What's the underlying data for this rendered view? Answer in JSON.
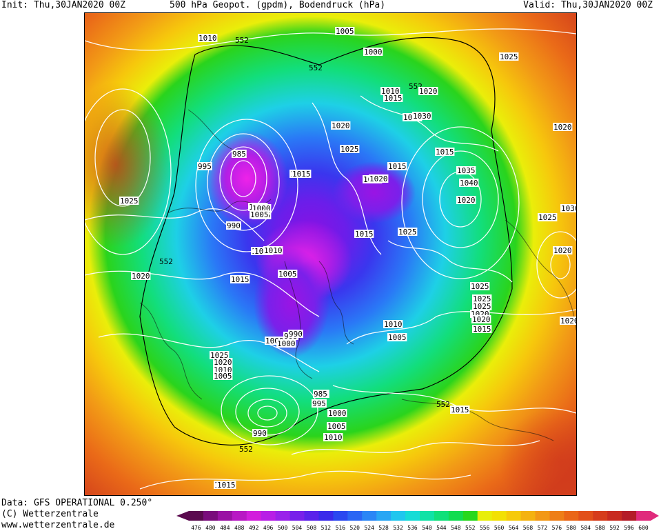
{
  "header": {
    "init": "Init: Thu,30JAN2020 00Z",
    "title": "500 hPa Geopot. (gpdm), Bodendruck (hPa)",
    "valid": "Valid: Thu,30JAN2020 00Z"
  },
  "footer": {
    "data_source": "Data: GFS OPERATIONAL 0.250°",
    "copyright": "(C) Wetterzentrale",
    "url": "www.wetterzentrale.de"
  },
  "legend": {
    "unit": "gpdm",
    "ticks": [
      "476",
      "480",
      "484",
      "488",
      "492",
      "496",
      "500",
      "504",
      "508",
      "512",
      "516",
      "520",
      "524",
      "528",
      "532",
      "536",
      "540",
      "544",
      "548",
      "552",
      "556",
      "560",
      "564",
      "568",
      "572",
      "576",
      "580",
      "584",
      "588",
      "592",
      "596",
      "600"
    ],
    "colors": [
      "#5a0a4e",
      "#7a0c7c",
      "#9a12a4",
      "#b818c4",
      "#d21edc",
      "#b81fe6",
      "#9a22ea",
      "#7820ea",
      "#5a22ea",
      "#3a2aea",
      "#2a48f0",
      "#2a66f4",
      "#2a86f6",
      "#28a6f4",
      "#20c6ee",
      "#16dcd6",
      "#10e2a6",
      "#10e07a",
      "#12dc50",
      "#28d81c",
      "#e8ee0a",
      "#f2e004",
      "#f6ca0a",
      "#f4b210",
      "#f29816",
      "#ee7e18",
      "#ea6618",
      "#e2501a",
      "#d63c1c",
      "#c82a20",
      "#b41c28",
      "#e02a7c"
    ]
  },
  "map": {
    "contour_labels_gpdm": [
      "552",
      "552",
      "552",
      "552",
      "552",
      "552"
    ],
    "pressure_labels_hpa": [
      "1010",
      "1005",
      "1000",
      "1010",
      "1015",
      "1020",
      "1025",
      "1030",
      "1020",
      "1025",
      "1015",
      "1020",
      "1030",
      "1035",
      "1040",
      "1020",
      "1015",
      "1025",
      "1020",
      "1015",
      "1025",
      "1015",
      "1020",
      "1030",
      "1025",
      "1020",
      "1020",
      "1025",
      "1020",
      "1015",
      "1015",
      "1010",
      "1005",
      "1000",
      "990",
      "985",
      "995",
      "1000",
      "1005",
      "1010",
      "1025",
      "1020",
      "1010",
      "1005",
      "1000",
      "995",
      "990",
      "985",
      "995",
      "990",
      "1000",
      "1005",
      "1010",
      "1015",
      "1005",
      "1010",
      "1015",
      "1015",
      "985",
      "995",
      "1025",
      "1020",
      "1025",
      "1020",
      "1015",
      "1010",
      "1005",
      "1000",
      "1015"
    ]
  }
}
